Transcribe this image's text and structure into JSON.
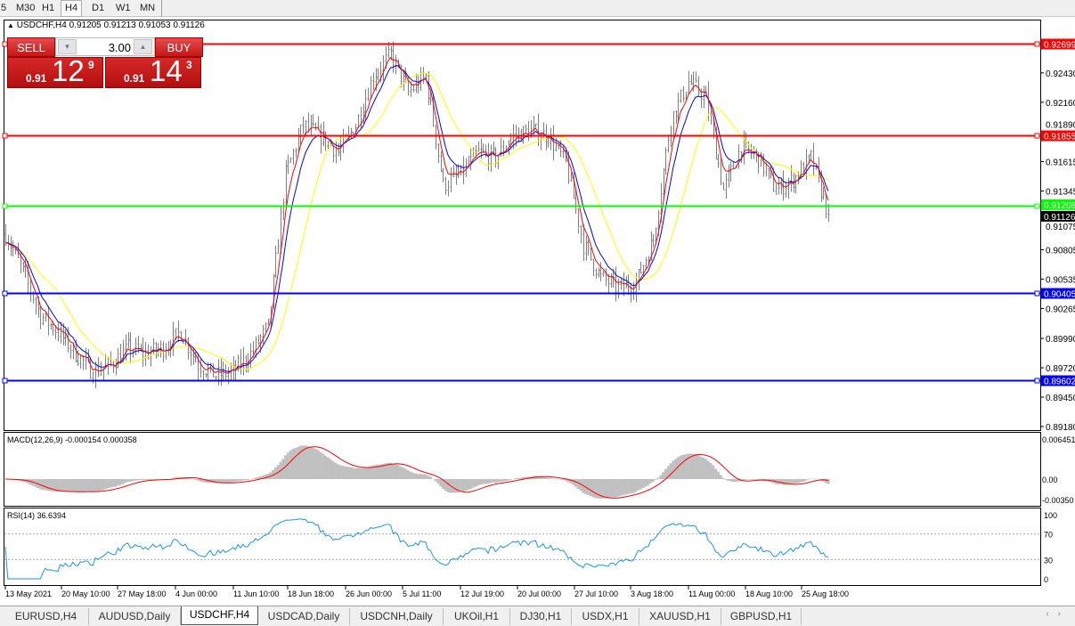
{
  "toolbar": {
    "timeframes": [
      "5",
      "M30",
      "H1",
      "H4",
      "D1",
      "W1",
      "MN"
    ],
    "active": "H4"
  },
  "chart": {
    "title": "USDCHF,H4  0.91205 0.91213 0.91053 0.91126",
    "symbol": "USDCHF",
    "timeframe": "H4",
    "ohlc": {
      "open": 0.91205,
      "high": 0.91213,
      "low": 0.91053,
      "close": 0.91126
    },
    "one_click": {
      "sell_label": "SELL",
      "buy_label": "BUY",
      "lot": "3.00",
      "sell_prefix": "0.91",
      "sell_big": "12",
      "sell_pip": "9",
      "buy_prefix": "0.91",
      "buy_big": "14",
      "buy_pip": "3"
    },
    "price_axis": [
      "0.92430",
      "0.92160",
      "0.91890",
      "0.91615",
      "0.91345",
      "0.91075",
      "0.90805",
      "0.90535",
      "0.90265",
      "0.89990",
      "0.89720",
      "0.89450",
      "0.89180"
    ],
    "levels": [
      {
        "price": 0.92699,
        "label": "0.92699",
        "color": "#ff0000"
      },
      {
        "price": 0.91855,
        "label": "0.91855",
        "color": "#ff0000"
      },
      {
        "price": 0.91208,
        "label": "0.91208",
        "color": "#00ff00"
      },
      {
        "price": 0.90405,
        "label": "0.90405",
        "color": "#0000ff"
      },
      {
        "price": 0.89602,
        "label": "0.89602",
        "color": "#0000ff"
      }
    ],
    "current_price": "0.91126",
    "ma_colors": [
      "#ff0000",
      "#0000ff",
      "#ffff00"
    ],
    "bar_color": "#808080"
  },
  "chart_data": {
    "type": "ohlc",
    "price_range": [
      0.8918,
      0.92699
    ],
    "approx_close_path": [
      0.9095,
      0.906,
      0.902,
      0.9005,
      0.8985,
      0.8968,
      0.8975,
      0.899,
      0.8985,
      0.899,
      0.9005,
      0.8975,
      0.8965,
      0.8968,
      0.8985,
      0.901,
      0.915,
      0.9195,
      0.9185,
      0.917,
      0.9195,
      0.924,
      0.926,
      0.9225,
      0.924,
      0.914,
      0.915,
      0.917,
      0.9165,
      0.9185,
      0.919,
      0.9185,
      0.916,
      0.9085,
      0.9055,
      0.9045,
      0.905,
      0.909,
      0.92,
      0.9235,
      0.922,
      0.9135,
      0.9175,
      0.9165,
      0.9135,
      0.9145,
      0.9165,
      0.91126
    ]
  },
  "macd": {
    "label": "MACD(12,26,9) -0.000154 0.000358",
    "axis": [
      "0.006451",
      "0.00",
      "-0.00350"
    ]
  },
  "rsi": {
    "label": "RSI(14) 36.6394",
    "axis": [
      "100",
      "70",
      "30",
      "0"
    ]
  },
  "time_axis": [
    "13 May 2021",
    "20 May 10:00",
    "27 May 18:00",
    "4 Jun 00:00",
    "11 Jun 10:00",
    "18 Jun 18:00",
    "26 Jun 00:00",
    "5 Jul 11:00",
    "12 Jul 19:00",
    "20 Jul 00:00",
    "27 Jul 10:00",
    "3 Aug 18:00",
    "11 Aug 00:00",
    "18 Aug 10:00",
    "25 Aug 18:00"
  ],
  "tabs": [
    "EURUSD,H4",
    "AUDUSD,Daily",
    "USDCHF,H4",
    "USDCAD,Daily",
    "USDCNH,Daily",
    "UKOil,H1",
    "DJ30,H1",
    "USDX,H1",
    "XAUUSD,H1",
    "GBPUSD,H1"
  ],
  "active_tab": "USDCHF,H4"
}
